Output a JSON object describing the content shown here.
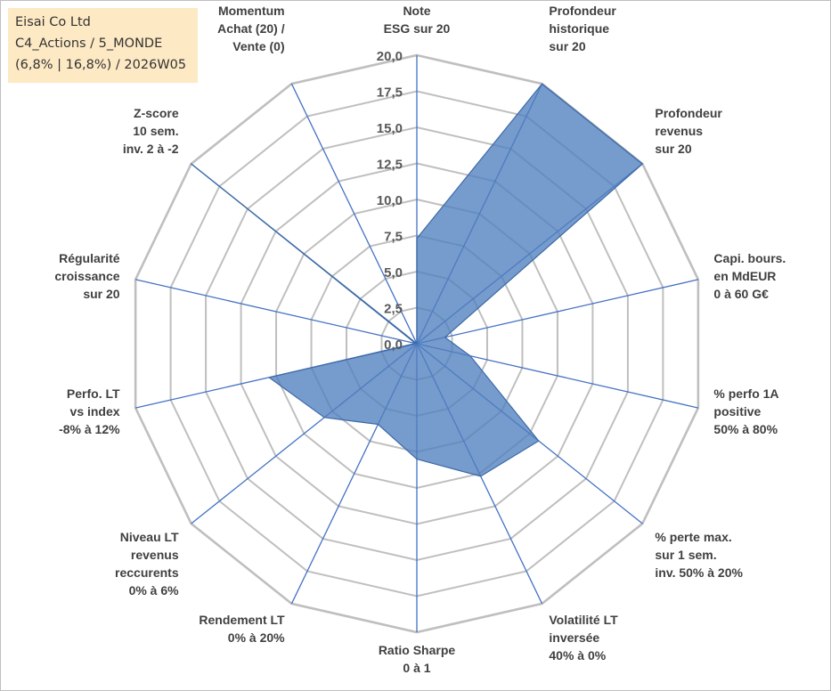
{
  "info_box": {
    "line1": "Eisai Co Ltd",
    "line2": "C4_Actions / 5_MONDE",
    "line3": "(6,8% | 16,8%) / 2026W05"
  },
  "colors": {
    "series_fill": "#4f7fbf",
    "series_stroke": "#3d6aa6",
    "grid": "#bfbfbf",
    "spoke": "#4472c4",
    "info_box_bg": "#fde9c4"
  },
  "chart_data": {
    "type": "radar",
    "axis_min": 0,
    "axis_max": 20,
    "tick_step": 2.5,
    "tick_labels": [
      "0,0",
      "2,5",
      "5,0",
      "7,5",
      "10,0",
      "12,5",
      "15,0",
      "17,5",
      "20,0"
    ],
    "grid": true,
    "categories": [
      [
        "Note",
        "ESG sur 20"
      ],
      [
        "Profondeur",
        "historique",
        "sur 20"
      ],
      [
        "Profondeur",
        "revenus",
        "sur 20"
      ],
      [
        "Capi. bours.",
        "en MdEUR",
        "0 à 60 G€"
      ],
      [
        "% perfo 1A",
        "positive",
        "50% à 80%"
      ],
      [
        "% perte max.",
        "sur 1 sem.",
        "inv. 50% à 20%"
      ],
      [
        "Volatilité LT",
        "inversée",
        "40% à 0%"
      ],
      [
        "Ratio Sharpe",
        "0 à 1"
      ],
      [
        "Rendement LT",
        "0% à 20%"
      ],
      [
        "Niveau LT",
        "revenus",
        "reccurents",
        "0% à 6%"
      ],
      [
        "Perfo. LT",
        "vs index",
        "-8% à 12%"
      ],
      [
        "Régularité",
        "croissance",
        "sur 20"
      ],
      [
        "Z-score",
        "10 sem.",
        "inv. 2 à -2"
      ],
      [
        "Momentum",
        "Achat (20) /",
        "Vente (0)"
      ]
    ],
    "series": [
      {
        "values": [
          7.3,
          20.0,
          20.0,
          2.0,
          3.8,
          10.8,
          10.2,
          8.0,
          6.2,
          8.2,
          10.5,
          0.1,
          20.0,
          0.0
        ]
      }
    ]
  }
}
